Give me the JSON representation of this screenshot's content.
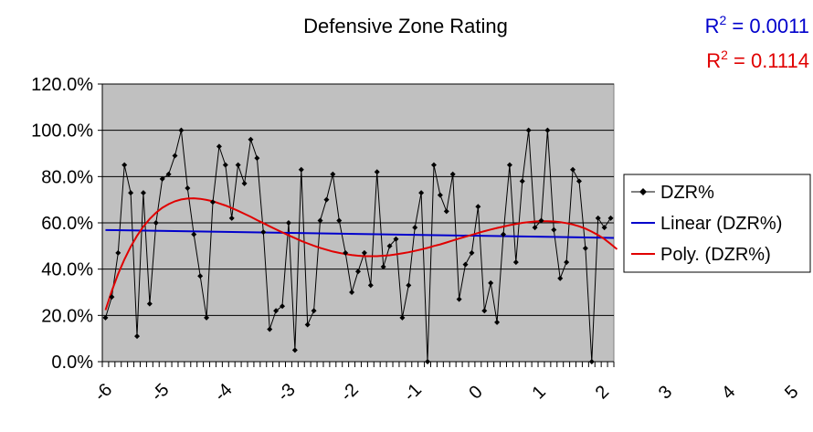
{
  "chart_data": {
    "type": "line",
    "title": "Defensive Zone Rating",
    "r2_linear": {
      "label": "R",
      "sup": "2",
      "value": " = 0.0011",
      "color": "#0000cc"
    },
    "r2_poly": {
      "label": "R",
      "sup": "2",
      "value": " = 0.1114",
      "color": "#e00000"
    },
    "ylim": [
      0,
      120
    ],
    "y_ticks": [
      0,
      20,
      40,
      60,
      80,
      100,
      120
    ],
    "y_tick_labels": [
      "0.0%",
      "20.0%",
      "40.0%",
      "60.0%",
      "80.0%",
      "100.0%",
      "120.0%"
    ],
    "x_tick_labels": [
      {
        "text": "-6",
        "index": 0
      },
      {
        "text": "-5",
        "index": 9
      },
      {
        "text": "-4",
        "index": 19
      },
      {
        "text": "-3",
        "index": 29
      },
      {
        "text": "-2",
        "index": 39
      },
      {
        "text": "-1",
        "index": 49
      },
      {
        "text": "0",
        "index": 59
      },
      {
        "text": "1",
        "index": 69
      },
      {
        "text": "2",
        "index": 79
      },
      {
        "text": "3",
        "index": 89
      },
      {
        "text": "4",
        "index": 99
      },
      {
        "text": "5",
        "index": 109
      }
    ],
    "grid": true,
    "legend_position": "right",
    "plot_background": "#c0c0c0",
    "series": [
      {
        "name": "DZR%",
        "color": "#000000",
        "marker": "diamond",
        "values": [
          19,
          28,
          47,
          85,
          73,
          11,
          73,
          25,
          60,
          79,
          81,
          89,
          100,
          75,
          55,
          37,
          19,
          69,
          93,
          85,
          62,
          85,
          77,
          96,
          88,
          56,
          14,
          22,
          24,
          60,
          5,
          83,
          16,
          22,
          61,
          70,
          81,
          61,
          47,
          30,
          39,
          47,
          33,
          82,
          41,
          50,
          53,
          19,
          33,
          58,
          73,
          0,
          85,
          72,
          65,
          81,
          27,
          42,
          47,
          67,
          22,
          34,
          17,
          55,
          85,
          43,
          78,
          100,
          58,
          61,
          100,
          57,
          36,
          43,
          83,
          78,
          49,
          0,
          62,
          58,
          62
        ]
      },
      {
        "name": "Linear (DZR%)",
        "color": "#0000cc",
        "values": [
          56.9,
          53.5
        ]
      },
      {
        "name": "Poly. (DZR%)",
        "color": "#e00000",
        "values": [
          22.3,
          30.6,
          37.9,
          44.2,
          49.7,
          54.4,
          58.4,
          61.7,
          64.4,
          66.5,
          68.1,
          69.3,
          70.1,
          70.5,
          70.6,
          70.4,
          69.9,
          69.3,
          68.4,
          67.5,
          66.4,
          65.2,
          63.9,
          62.6,
          61.2,
          59.9,
          58.5,
          57.2,
          55.9,
          54.6,
          53.4,
          52.2,
          51.1,
          50.1,
          49.2,
          48.4,
          47.6,
          47.0,
          46.5,
          46.1,
          45.8,
          45.6,
          45.6,
          45.6,
          45.8,
          46.0,
          46.4,
          46.8,
          47.3,
          47.9,
          48.5,
          49.2,
          50.0,
          50.7,
          51.5,
          52.4,
          53.2,
          54.0,
          54.8,
          55.6,
          56.4,
          57.1,
          57.8,
          58.4,
          59.0,
          59.5,
          60.0,
          60.3,
          60.6,
          60.7,
          60.7,
          60.6,
          60.3,
          59.9,
          59.3,
          58.5,
          57.5,
          56.2,
          54.7,
          53.0,
          50.9,
          48.6
        ]
      }
    ]
  }
}
